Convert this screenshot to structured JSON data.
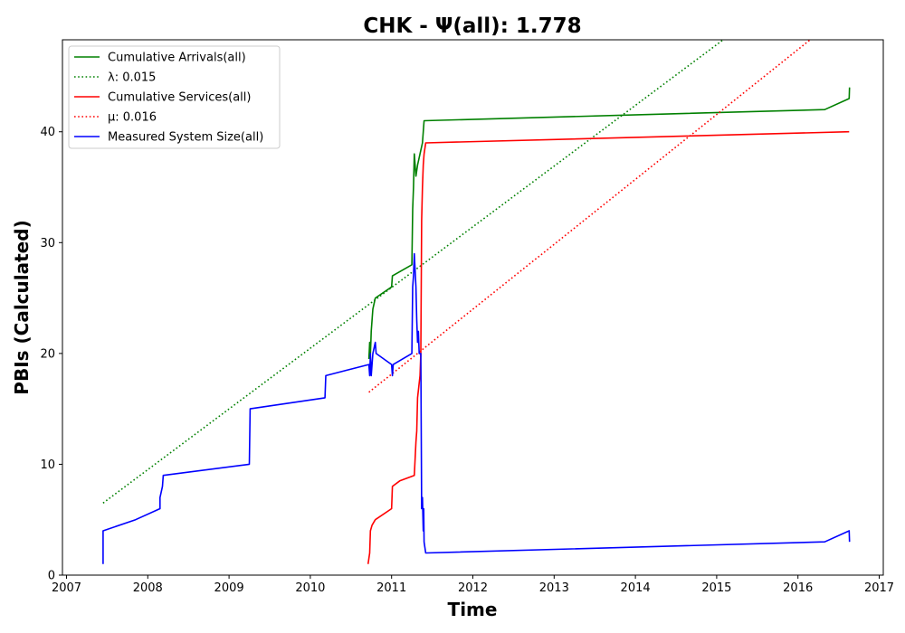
{
  "chart_data": {
    "type": "line",
    "title": "CHK -  Ψ(all): 1.778",
    "xlabel": "Time",
    "ylabel": "PBIs (Calculated)",
    "xlim": [
      2006.95,
      2017.05
    ],
    "ylim": [
      0,
      48.3
    ],
    "xticks": [
      2007,
      2008,
      2009,
      2010,
      2011,
      2012,
      2013,
      2014,
      2015,
      2016,
      2017
    ],
    "yticks": [
      0,
      10,
      20,
      30,
      40
    ],
    "grid": false,
    "legend_position": "upper-left",
    "series": [
      {
        "name": "Cumulative Arrivals(all)",
        "style": "solid",
        "color": "#008000",
        "points": [
          [
            2010.72,
            19.5
          ],
          [
            2010.73,
            21
          ],
          [
            2010.74,
            20
          ],
          [
            2010.745,
            21
          ],
          [
            2010.75,
            22
          ],
          [
            2010.76,
            23
          ],
          [
            2010.77,
            24
          ],
          [
            2010.8,
            25
          ],
          [
            2011.0,
            26
          ],
          [
            2011.01,
            27
          ],
          [
            2011.25,
            28
          ],
          [
            2011.26,
            33
          ],
          [
            2011.27,
            35
          ],
          [
            2011.28,
            38
          ],
          [
            2011.3,
            36
          ],
          [
            2011.32,
            37
          ],
          [
            2011.35,
            38
          ],
          [
            2011.38,
            39
          ],
          [
            2011.39,
            40
          ],
          [
            2011.4,
            41
          ],
          [
            2016.33,
            42
          ],
          [
            2016.63,
            43
          ],
          [
            2016.635,
            44
          ]
        ]
      },
      {
        "name": "λ: 0.015",
        "style": "dotted",
        "color": "#008000",
        "points": [
          [
            2007.45,
            6.5
          ],
          [
            2015.08,
            48.3
          ]
        ]
      },
      {
        "name": "Cumulative Services(all)",
        "style": "solid",
        "color": "#ff0000",
        "points": [
          [
            2010.71,
            1
          ],
          [
            2010.72,
            1.5
          ],
          [
            2010.73,
            2
          ],
          [
            2010.74,
            4
          ],
          [
            2010.76,
            4.5
          ],
          [
            2010.8,
            5
          ],
          [
            2011.0,
            6
          ],
          [
            2011.01,
            8
          ],
          [
            2011.1,
            8.5
          ],
          [
            2011.28,
            9
          ],
          [
            2011.3,
            12
          ],
          [
            2011.31,
            13
          ],
          [
            2011.32,
            16
          ],
          [
            2011.35,
            18
          ],
          [
            2011.36,
            20
          ],
          [
            2011.37,
            32
          ],
          [
            2011.38,
            35
          ],
          [
            2011.39,
            37
          ],
          [
            2011.4,
            38
          ],
          [
            2011.42,
            39
          ],
          [
            2016.63,
            40
          ]
        ]
      },
      {
        "name": "μ: 0.016",
        "style": "dotted",
        "color": "#ff0000",
        "points": [
          [
            2010.72,
            16.5
          ],
          [
            2016.15,
            48.3
          ]
        ]
      },
      {
        "name": "Measured System Size(all)",
        "style": "solid",
        "color": "#0000ff",
        "points": [
          [
            2007.45,
            1
          ],
          [
            2007.45,
            4
          ],
          [
            2007.85,
            5
          ],
          [
            2008.15,
            6
          ],
          [
            2008.15,
            7
          ],
          [
            2008.18,
            8
          ],
          [
            2008.19,
            9
          ],
          [
            2009.25,
            10
          ],
          [
            2009.26,
            15
          ],
          [
            2010.18,
            16
          ],
          [
            2010.19,
            18
          ],
          [
            2010.72,
            19
          ],
          [
            2010.73,
            18
          ],
          [
            2010.74,
            20
          ],
          [
            2010.75,
            18
          ],
          [
            2010.77,
            20
          ],
          [
            2010.8,
            21
          ],
          [
            2010.81,
            20
          ],
          [
            2011.0,
            19
          ],
          [
            2011.01,
            18
          ],
          [
            2011.02,
            19
          ],
          [
            2011.25,
            20
          ],
          [
            2011.26,
            26
          ],
          [
            2011.27,
            27
          ],
          [
            2011.28,
            29
          ],
          [
            2011.3,
            26
          ],
          [
            2011.31,
            23
          ],
          [
            2011.32,
            21
          ],
          [
            2011.33,
            22
          ],
          [
            2011.34,
            20
          ],
          [
            2011.35,
            20
          ],
          [
            2011.36,
            20
          ],
          [
            2011.37,
            6
          ],
          [
            2011.38,
            7
          ],
          [
            2011.39,
            4
          ],
          [
            2011.395,
            6
          ],
          [
            2011.4,
            3
          ],
          [
            2011.42,
            2
          ],
          [
            2016.33,
            3
          ],
          [
            2016.63,
            4
          ],
          [
            2016.635,
            3
          ]
        ]
      }
    ]
  }
}
